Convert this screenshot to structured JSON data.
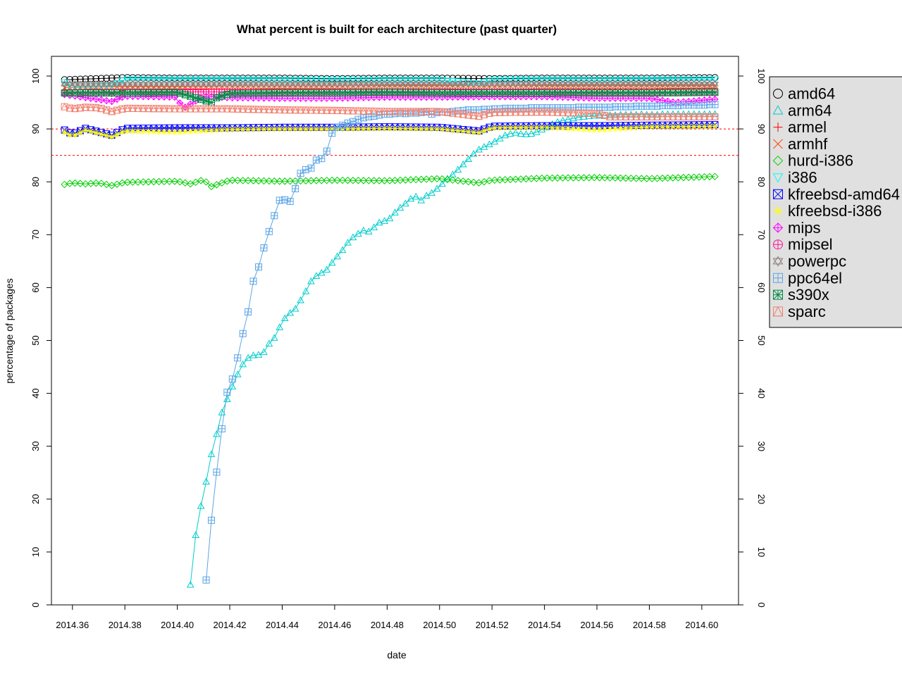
{
  "chart_data": {
    "type": "line",
    "title": "What percent is built for each architecture (past quarter)",
    "xlabel": "date",
    "ylabel": "percentage of packages",
    "xlim": [
      2014.352,
      2014.614
    ],
    "ylim": [
      0,
      101
    ],
    "xticks": [
      2014.36,
      2014.38,
      2014.4,
      2014.42,
      2014.44,
      2014.46,
      2014.48,
      2014.5,
      2014.52,
      2014.54,
      2014.56,
      2014.58,
      2014.6
    ],
    "xtick_labels": [
      "2014.36",
      "2014.38",
      "2014.40",
      "2014.42",
      "2014.44",
      "2014.46",
      "2014.48",
      "2014.50",
      "2014.52",
      "2014.54",
      "2014.56",
      "2014.58",
      "2014.60"
    ],
    "yticks": [
      0,
      10,
      20,
      30,
      40,
      50,
      60,
      70,
      80,
      90,
      100
    ],
    "ytick_labels": [
      "0",
      "10",
      "20",
      "30",
      "40",
      "50",
      "60",
      "70",
      "80",
      "90",
      "100"
    ],
    "reference_lines": [
      90,
      85
    ],
    "reference_color": "#ff0000",
    "grid": false,
    "legend_position": "right",
    "series": [
      {
        "name": "amd64",
        "color": "#000000",
        "marker": "circle",
        "x": [
          2014.357,
          2014.38,
          2014.4,
          2014.42,
          2014.44,
          2014.46,
          2014.48,
          2014.5,
          2014.52,
          2014.54,
          2014.56,
          2014.58,
          2014.605
        ],
        "y": [
          99.3,
          99.7,
          99.6,
          99.6,
          99.6,
          99.5,
          99.6,
          99.6,
          99.5,
          99.6,
          99.6,
          99.6,
          99.7
        ]
      },
      {
        "name": "arm64",
        "color": "#00cdcd",
        "marker": "triangle",
        "x": [
          2014.405,
          2014.407,
          2014.409,
          2014.411,
          2014.413,
          2014.415,
          2014.417,
          2014.419,
          2014.421,
          2014.423,
          2014.425,
          2014.427,
          2014.429,
          2014.431,
          2014.433,
          2014.435,
          2014.437,
          2014.439,
          2014.441,
          2014.443,
          2014.445,
          2014.447,
          2014.449,
          2014.451,
          2014.453,
          2014.455,
          2014.457,
          2014.459,
          2014.461,
          2014.463,
          2014.465,
          2014.467,
          2014.469,
          2014.471,
          2014.473,
          2014.475,
          2014.477,
          2014.479,
          2014.481,
          2014.483,
          2014.485,
          2014.487,
          2014.489,
          2014.491,
          2014.493,
          2014.495,
          2014.497,
          2014.499,
          2014.501,
          2014.503,
          2014.505,
          2014.507,
          2014.509,
          2014.511,
          2014.513,
          2014.515,
          2014.517,
          2014.519,
          2014.521,
          2014.523,
          2014.525,
          2014.527,
          2014.529,
          2014.531,
          2014.533,
          2014.535,
          2014.537,
          2014.539,
          2014.541,
          2014.543,
          2014.545,
          2014.547,
          2014.549,
          2014.551,
          2014.553,
          2014.555,
          2014.557,
          2014.559,
          2014.561,
          2014.563,
          2014.565,
          2014.567,
          2014.569,
          2014.571,
          2014.573,
          2014.575,
          2014.577,
          2014.579,
          2014.581,
          2014.583,
          2014.585,
          2014.587,
          2014.589,
          2014.591,
          2014.593,
          2014.595,
          2014.597,
          2014.599,
          2014.601,
          2014.603,
          2014.605
        ],
        "y": [
          3.8,
          13.2,
          18.7,
          23.3,
          28.5,
          32.3,
          36.4,
          38.9,
          41.3,
          43.6,
          45.5,
          46.7,
          47.2,
          47.3,
          47.8,
          49.4,
          50.5,
          52.5,
          54.2,
          55.2,
          56.0,
          57.6,
          59.3,
          61.2,
          62.2,
          62.8,
          63.4,
          64.7,
          65.9,
          67.1,
          68.5,
          69.5,
          70.2,
          70.8,
          70.6,
          71.4,
          72.3,
          72.6,
          73.1,
          74.2,
          75.1,
          75.9,
          76.8,
          77.2,
          76.5,
          77.4,
          77.9,
          78.7,
          79.6,
          80.6,
          81.4,
          82.3,
          83.3,
          84.3,
          85.3,
          86.1,
          86.6,
          87.1,
          87.6,
          88.2,
          88.8,
          89.1,
          89.3,
          89.1,
          89.0,
          89.1,
          89.4,
          89.9,
          90.3,
          90.9,
          91.3,
          91.6,
          91.8,
          92.0,
          92.2,
          92.3,
          92.4,
          92.5,
          92.5,
          92.6,
          92.6,
          92.6,
          92.7,
          92.7,
          92.7,
          92.7,
          92.8,
          92.7,
          92.7,
          92.7,
          92.8,
          92.8,
          92.8,
          92.8,
          92.8,
          92.8,
          92.8,
          92.8,
          92.8,
          92.8,
          92.8
        ]
      },
      {
        "name": "armel",
        "color": "#ff0000",
        "marker": "plus",
        "x": [
          2014.357,
          2014.37,
          2014.375,
          2014.38,
          2014.4,
          2014.42,
          2014.44,
          2014.46,
          2014.48,
          2014.5,
          2014.52,
          2014.54,
          2014.56,
          2014.58,
          2014.605
        ],
        "y": [
          97.3,
          97.6,
          96.6,
          97.4,
          97.4,
          97.5,
          97.6,
          97.6,
          97.6,
          97.6,
          97.4,
          97.6,
          97.6,
          97.6,
          97.7
        ]
      },
      {
        "name": "armhf",
        "color": "#ff4500",
        "marker": "cross",
        "x": [
          2014.357,
          2014.38,
          2014.4,
          2014.42,
          2014.44,
          2014.46,
          2014.48,
          2014.5,
          2014.52,
          2014.54,
          2014.56,
          2014.58,
          2014.605
        ],
        "y": [
          97.8,
          98.0,
          98.0,
          98.1,
          98.1,
          98.1,
          98.2,
          98.2,
          98.1,
          98.2,
          98.2,
          98.2,
          98.2
        ]
      },
      {
        "name": "hurd-i386",
        "color": "#00cd00",
        "marker": "diamond",
        "x": [
          2014.357,
          2014.36,
          2014.365,
          2014.37,
          2014.375,
          2014.38,
          2014.4,
          2014.405,
          2014.41,
          2014.413,
          2014.42,
          2014.44,
          2014.46,
          2014.48,
          2014.5,
          2014.515,
          2014.52,
          2014.54,
          2014.56,
          2014.58,
          2014.605
        ],
        "y": [
          79.5,
          79.8,
          79.6,
          79.8,
          79.3,
          79.9,
          80.1,
          79.6,
          80.4,
          79.1,
          80.3,
          80.1,
          80.3,
          80.2,
          80.6,
          79.8,
          80.3,
          80.7,
          80.8,
          80.6,
          81.0
        ]
      },
      {
        "name": "i386",
        "color": "#00ffff",
        "marker": "triangle-down",
        "x": [
          2014.357,
          2014.36,
          2014.375,
          2014.38,
          2014.4,
          2014.42,
          2014.44,
          2014.46,
          2014.48,
          2014.5,
          2014.515,
          2014.52,
          2014.54,
          2014.56,
          2014.58,
          2014.605
        ],
        "y": [
          98.8,
          98.0,
          98.2,
          99.4,
          99.4,
          99.4,
          99.3,
          99.3,
          99.3,
          99.3,
          98.6,
          99.3,
          99.4,
          99.3,
          99.4,
          99.4
        ]
      },
      {
        "name": "kfreebsd-amd64",
        "color": "#0000ff",
        "marker": "box-x",
        "x": [
          2014.357,
          2014.36,
          2014.365,
          2014.375,
          2014.38,
          2014.4,
          2014.42,
          2014.44,
          2014.46,
          2014.48,
          2014.5,
          2014.515,
          2014.52,
          2014.54,
          2014.56,
          2014.58,
          2014.605
        ],
        "y": [
          89.8,
          89.0,
          90.1,
          88.8,
          90.1,
          90.2,
          90.2,
          90.3,
          90.3,
          90.4,
          90.3,
          89.6,
          90.5,
          90.6,
          90.6,
          90.7,
          90.8
        ]
      },
      {
        "name": "kfreebsd-i386",
        "color": "#ffff00",
        "marker": "asterisk",
        "x": [
          2014.357,
          2014.36,
          2014.365,
          2014.375,
          2014.38,
          2014.4,
          2014.42,
          2014.44,
          2014.46,
          2014.48,
          2014.5,
          2014.515,
          2014.52,
          2014.54,
          2014.56,
          2014.58,
          2014.605
        ],
        "y": [
          89.4,
          88.6,
          89.8,
          88.5,
          89.6,
          89.4,
          89.9,
          90.0,
          90.0,
          90.1,
          90.0,
          89.3,
          90.2,
          90.3,
          89.8,
          90.4,
          90.5
        ]
      },
      {
        "name": "mips",
        "color": "#ff00ff",
        "marker": "diamond-plus",
        "x": [
          2014.357,
          2014.375,
          2014.38,
          2014.4,
          2014.402,
          2014.41,
          2014.42,
          2014.44,
          2014.46,
          2014.48,
          2014.5,
          2014.52,
          2014.54,
          2014.56,
          2014.58,
          2014.59,
          2014.605
        ],
        "y": [
          96.5,
          95.2,
          96.2,
          96.0,
          93.8,
          96.2,
          95.9,
          95.8,
          95.8,
          96.0,
          96.0,
          96.1,
          96.1,
          95.8,
          95.8,
          95.0,
          95.6
        ]
      },
      {
        "name": "mipsel",
        "color": "#ff1493",
        "marker": "circle-plus",
        "x": [
          2014.357,
          2014.38,
          2014.4,
          2014.42,
          2014.44,
          2014.46,
          2014.48,
          2014.5,
          2014.52,
          2014.54,
          2014.56,
          2014.58,
          2014.605
        ],
        "y": [
          96.9,
          97.0,
          97.0,
          97.0,
          96.9,
          97.0,
          97.0,
          97.0,
          97.0,
          97.0,
          96.9,
          96.9,
          97.0
        ]
      },
      {
        "name": "powerpc",
        "color": "#8b7d7b",
        "marker": "star",
        "x": [
          2014.357,
          2014.38,
          2014.4,
          2014.42,
          2014.44,
          2014.46,
          2014.48,
          2014.5,
          2014.52,
          2014.54,
          2014.56,
          2014.58,
          2014.605
        ],
        "y": [
          98.5,
          98.5,
          98.5,
          98.5,
          98.5,
          98.5,
          98.5,
          98.5,
          98.5,
          98.5,
          98.5,
          98.5,
          98.5
        ]
      },
      {
        "name": "ppc64el",
        "color": "#5ca6e6",
        "marker": "square-plus",
        "x": [
          2014.411,
          2014.413,
          2014.415,
          2014.417,
          2014.419,
          2014.421,
          2014.423,
          2014.425,
          2014.427,
          2014.429,
          2014.431,
          2014.433,
          2014.435,
          2014.437,
          2014.439,
          2014.441,
          2014.443,
          2014.445,
          2014.447,
          2014.449,
          2014.451,
          2014.453,
          2014.455,
          2014.457,
          2014.459,
          2014.461,
          2014.463,
          2014.465,
          2014.467,
          2014.469,
          2014.471,
          2014.473,
          2014.475,
          2014.477,
          2014.479,
          2014.481,
          2014.483,
          2014.485,
          2014.487,
          2014.489,
          2014.491,
          2014.493,
          2014.495,
          2014.497,
          2014.499,
          2014.501,
          2014.503,
          2014.505,
          2014.507,
          2014.509,
          2014.511,
          2014.513,
          2014.515,
          2014.517,
          2014.519,
          2014.521,
          2014.523,
          2014.525,
          2014.527,
          2014.529,
          2014.531,
          2014.533,
          2014.535,
          2014.537,
          2014.539,
          2014.541,
          2014.543,
          2014.545,
          2014.547,
          2014.549,
          2014.551,
          2014.553,
          2014.555,
          2014.557,
          2014.559,
          2014.561,
          2014.563,
          2014.565,
          2014.567,
          2014.569,
          2014.571,
          2014.573,
          2014.575,
          2014.577,
          2014.579,
          2014.581,
          2014.583,
          2014.585,
          2014.587,
          2014.589,
          2014.591,
          2014.593,
          2014.595,
          2014.597,
          2014.599,
          2014.601,
          2014.603,
          2014.605
        ],
        "y": [
          4.7,
          16.0,
          25.1,
          33.3,
          40.2,
          42.7,
          46.7,
          51.3,
          55.4,
          61.2,
          63.9,
          67.5,
          70.6,
          73.6,
          76.5,
          76.6,
          76.3,
          78.7,
          81.6,
          82.3,
          82.6,
          84.1,
          84.4,
          85.8,
          89.2,
          90.3,
          90.7,
          91.1,
          91.4,
          91.8,
          92.1,
          92.3,
          92.4,
          92.6,
          92.8,
          92.8,
          92.9,
          93.0,
          92.9,
          93.0,
          93.0,
          93.1,
          93.2,
          92.8,
          93.1,
          93.2,
          93.2,
          93.3,
          93.4,
          93.5,
          93.6,
          93.6,
          93.6,
          93.7,
          93.7,
          93.8,
          93.8,
          93.9,
          93.9,
          93.9,
          93.9,
          93.9,
          94.0,
          94.0,
          94.0,
          94.0,
          94.0,
          94.0,
          94.0,
          94.0,
          94.0,
          94.1,
          94.1,
          94.1,
          94.1,
          94.1,
          94.1,
          94.1,
          94.2,
          94.2,
          94.2,
          94.2,
          94.3,
          94.3,
          94.3,
          94.3,
          94.3,
          94.4,
          94.4,
          94.4,
          94.4,
          94.5,
          94.5,
          94.5,
          94.5,
          94.5,
          94.6,
          94.6
        ]
      },
      {
        "name": "s390x",
        "color": "#008b45",
        "marker": "box-x-plus",
        "x": [
          2014.357,
          2014.38,
          2014.4,
          2014.413,
          2014.415,
          2014.42,
          2014.44,
          2014.46,
          2014.48,
          2014.5,
          2014.52,
          2014.54,
          2014.56,
          2014.58,
          2014.605
        ],
        "y": [
          96.8,
          96.8,
          96.9,
          95.0,
          95.9,
          96.7,
          96.8,
          96.8,
          96.9,
          96.8,
          96.8,
          96.8,
          96.8,
          96.8,
          96.9
        ]
      },
      {
        "name": "sparc",
        "color": "#f08070",
        "marker": "box-triangle",
        "x": [
          2014.357,
          2014.36,
          2014.365,
          2014.37,
          2014.375,
          2014.38,
          2014.4,
          2014.42,
          2014.44,
          2014.46,
          2014.48,
          2014.5,
          2014.515,
          2014.52,
          2014.54,
          2014.56,
          2014.565,
          2014.58,
          2014.605
        ],
        "y": [
          94.2,
          93.8,
          94.1,
          94.0,
          93.3,
          93.9,
          93.8,
          93.8,
          93.6,
          93.5,
          93.3,
          93.3,
          92.4,
          93.1,
          93.2,
          92.9,
          92.3,
          92.3,
          92.3
        ]
      }
    ]
  }
}
